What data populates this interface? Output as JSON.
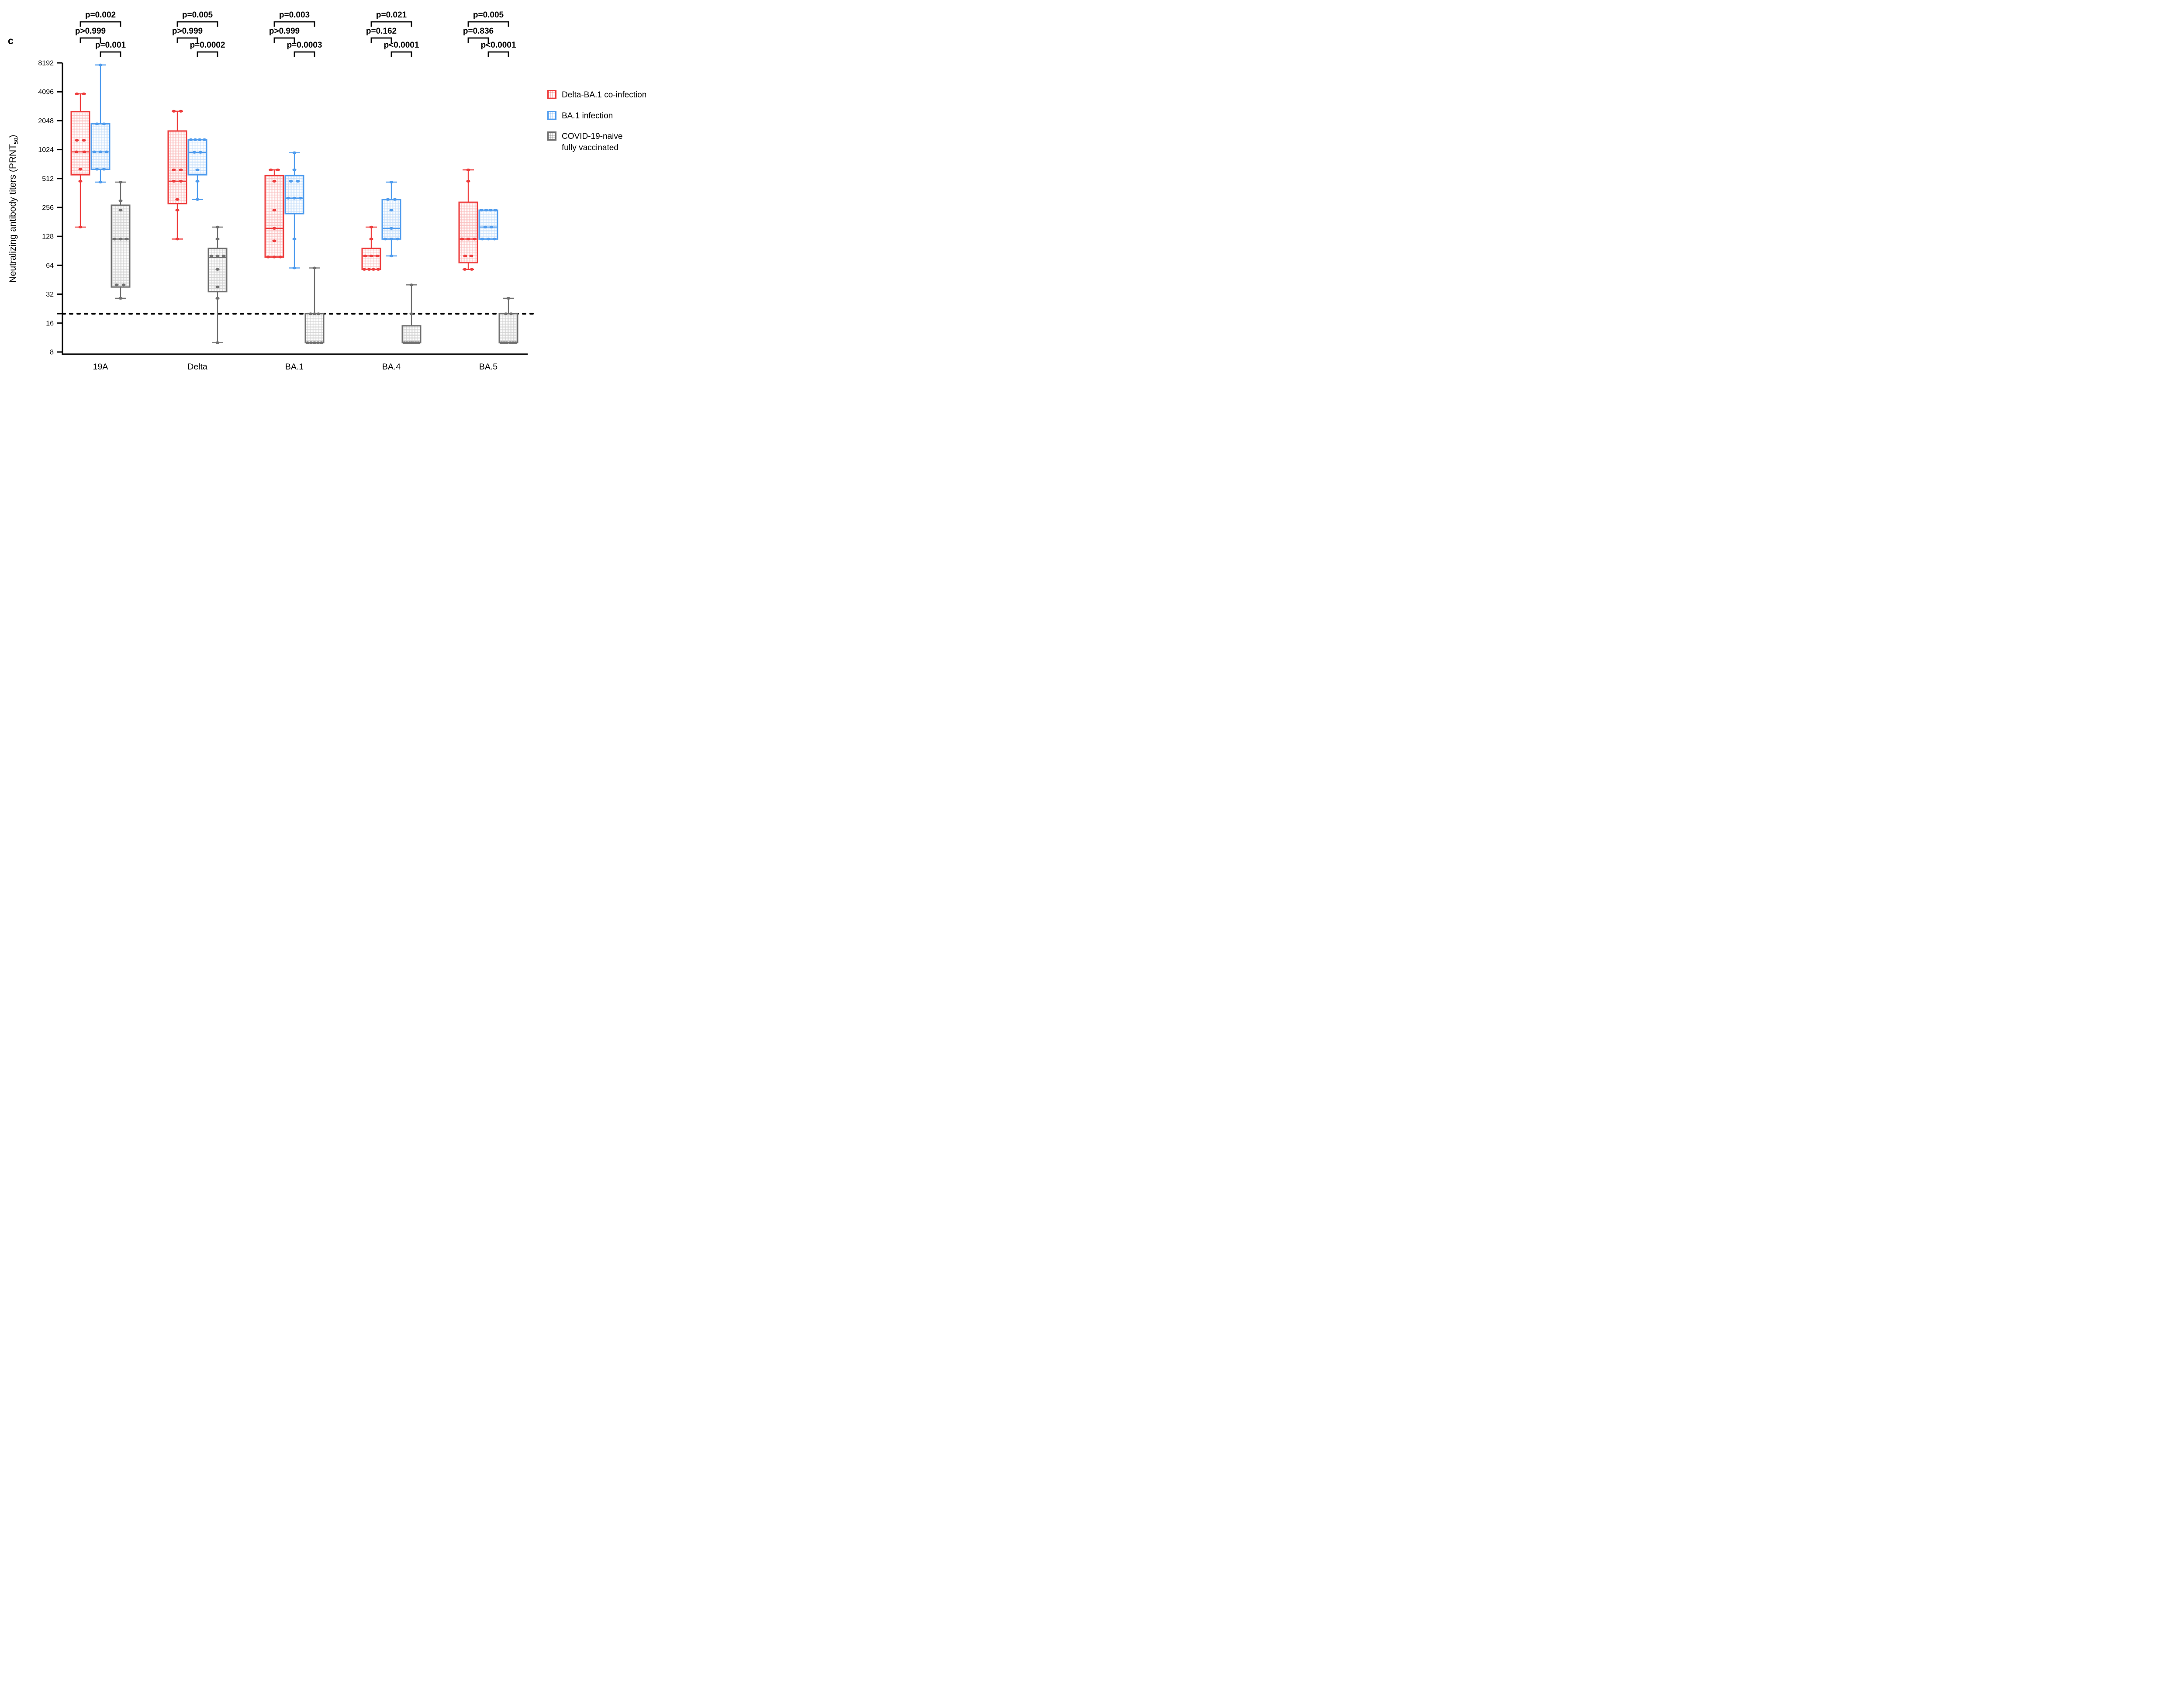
{
  "panel_label": "c",
  "chart_data": {
    "type": "box",
    "ylabel_main": "Neutralizing antibody titers (PRNT",
    "ylabel_sub": "50",
    "ylabel_close": ")",
    "y_scale": "log2",
    "ylim": [
      8,
      8192
    ],
    "y_ticks": [
      8192,
      4096,
      2048,
      1024,
      512,
      256,
      128,
      64,
      32,
      16,
      8
    ],
    "threshold_line": 20,
    "threshold_tick": true,
    "grid": "off",
    "legend_position": "right",
    "categories": [
      "19A",
      "Delta",
      "BA.1",
      "BA.4",
      "BA.5"
    ],
    "series": [
      {
        "id": "red",
        "color": "#ee3b3b",
        "lines": [
          "Delta-BA.1 co-infection"
        ]
      },
      {
        "id": "blue",
        "color": "#4f9cee",
        "lines": [
          "BA.1 infection"
        ]
      },
      {
        "id": "gray",
        "color": "#6f6f6f",
        "lines": [
          "COVID-19-naive",
          "fully vaccinated"
        ]
      }
    ],
    "boxes": [
      {
        "cat": "19A",
        "series": "red",
        "stats": {
          "lo": 160,
          "q1": 560,
          "med": 970,
          "q3": 2550,
          "hi": 3900
        },
        "pts": [
          [
            3900,
            -8
          ],
          [
            3900,
            8
          ],
          [
            1280,
            -8
          ],
          [
            1280,
            8
          ],
          [
            970,
            -9
          ],
          [
            970,
            9
          ],
          [
            640,
            0
          ],
          [
            480,
            0
          ],
          [
            160,
            0
          ]
        ]
      },
      {
        "cat": "19A",
        "series": "blue",
        "stats": {
          "lo": 470,
          "q1": 640,
          "med": 970,
          "q3": 1900,
          "hi": 7800
        },
        "pts": [
          [
            7800,
            0
          ],
          [
            1900,
            -8
          ],
          [
            1900,
            8
          ],
          [
            970,
            -14
          ],
          [
            970,
            0
          ],
          [
            970,
            14
          ],
          [
            640,
            -8
          ],
          [
            640,
            8
          ],
          [
            470,
            0
          ]
        ]
      },
      {
        "cat": "19A",
        "series": "gray",
        "stats": {
          "lo": 29,
          "q1": 38,
          "med": 120,
          "q3": 270,
          "hi": 470
        },
        "pts": [
          [
            470,
            0
          ],
          [
            300,
            0
          ],
          [
            240,
            0
          ],
          [
            120,
            -14
          ],
          [
            120,
            0
          ],
          [
            120,
            14
          ],
          [
            40,
            -9
          ],
          [
            40,
            7
          ],
          [
            29,
            0
          ]
        ]
      },
      {
        "cat": "Delta",
        "series": "red",
        "stats": {
          "lo": 120,
          "q1": 280,
          "med": 480,
          "q3": 1600,
          "hi": 2570
        },
        "pts": [
          [
            2570,
            -8
          ],
          [
            2570,
            8
          ],
          [
            630,
            -8
          ],
          [
            630,
            8
          ],
          [
            480,
            -8
          ],
          [
            480,
            8
          ],
          [
            310,
            0
          ],
          [
            240,
            0
          ],
          [
            120,
            0
          ]
        ]
      },
      {
        "cat": "Delta",
        "series": "blue",
        "stats": {
          "lo": 310,
          "q1": 560,
          "med": 960,
          "q3": 1300,
          "hi": 1300
        },
        "pts": [
          [
            1300,
            -15
          ],
          [
            1300,
            -5
          ],
          [
            1300,
            5
          ],
          [
            1300,
            16
          ],
          [
            960,
            -7
          ],
          [
            960,
            7
          ],
          [
            630,
            0
          ],
          [
            480,
            0
          ],
          [
            310,
            0
          ]
        ]
      },
      {
        "cat": "Delta",
        "series": "gray",
        "stats": {
          "lo": 10,
          "q1": 34,
          "med": 77,
          "q3": 96,
          "hi": 160
        },
        "pts": [
          [
            160,
            0
          ],
          [
            120,
            0
          ],
          [
            80,
            -14
          ],
          [
            80,
            0
          ],
          [
            80,
            14
          ],
          [
            58,
            0
          ],
          [
            38,
            0
          ],
          [
            29,
            0
          ],
          [
            10,
            0
          ]
        ]
      },
      {
        "cat": "BA.1",
        "series": "red",
        "stats": {
          "lo": 78,
          "q1": 78,
          "med": 155,
          "q3": 550,
          "hi": 630
        },
        "pts": [
          [
            630,
            -8
          ],
          [
            630,
            8
          ],
          [
            480,
            0
          ],
          [
            240,
            0
          ],
          [
            155,
            0
          ],
          [
            115,
            0
          ],
          [
            78,
            -14
          ],
          [
            78,
            0
          ],
          [
            78,
            14
          ]
        ]
      },
      {
        "cat": "BA.1",
        "series": "blue",
        "stats": {
          "lo": 60,
          "q1": 220,
          "med": 320,
          "q3": 550,
          "hi": 950
        },
        "pts": [
          [
            950,
            0
          ],
          [
            630,
            0
          ],
          [
            480,
            -8
          ],
          [
            480,
            8
          ],
          [
            320,
            -14
          ],
          [
            320,
            0
          ],
          [
            320,
            14
          ],
          [
            120,
            0
          ],
          [
            60,
            0
          ]
        ]
      },
      {
        "cat": "BA.1",
        "series": "gray",
        "stats": {
          "lo": 10,
          "q1": 10,
          "med": 10,
          "q3": 20,
          "hi": 60
        },
        "pts": [
          [
            60,
            0
          ],
          [
            20,
            -9
          ],
          [
            20,
            0
          ],
          [
            20,
            9
          ],
          [
            10,
            -16
          ],
          [
            10,
            -8
          ],
          [
            10,
            0
          ],
          [
            10,
            8
          ],
          [
            10,
            16
          ]
        ]
      },
      {
        "cat": "BA.4",
        "series": "red",
        "stats": {
          "lo": 58,
          "q1": 58,
          "med": 80,
          "q3": 96,
          "hi": 160
        },
        "pts": [
          [
            160,
            0
          ],
          [
            120,
            0
          ],
          [
            80,
            -14
          ],
          [
            80,
            0
          ],
          [
            80,
            14
          ],
          [
            58,
            -16
          ],
          [
            58,
            -5
          ],
          [
            58,
            5
          ],
          [
            58,
            16
          ]
        ]
      },
      {
        "cat": "BA.4",
        "series": "blue",
        "stats": {
          "lo": 80,
          "q1": 120,
          "med": 155,
          "q3": 310,
          "hi": 470
        },
        "pts": [
          [
            470,
            0
          ],
          [
            310,
            -8
          ],
          [
            310,
            8
          ],
          [
            240,
            0
          ],
          [
            155,
            0
          ],
          [
            120,
            -14
          ],
          [
            120,
            0
          ],
          [
            120,
            14
          ],
          [
            80,
            0
          ]
        ]
      },
      {
        "cat": "BA.4",
        "series": "gray",
        "stats": {
          "lo": 10,
          "q1": 10,
          "med": 10,
          "q3": 15,
          "hi": 40
        },
        "pts": [
          [
            40,
            0
          ],
          [
            20,
            0
          ],
          [
            10,
            -16
          ],
          [
            10,
            -10
          ],
          [
            10,
            -4
          ],
          [
            10,
            0
          ],
          [
            10,
            4
          ],
          [
            10,
            10
          ],
          [
            10,
            16
          ]
        ]
      },
      {
        "cat": "BA.5",
        "series": "red",
        "stats": {
          "lo": 58,
          "q1": 68,
          "med": 120,
          "q3": 290,
          "hi": 630
        },
        "pts": [
          [
            630,
            0
          ],
          [
            480,
            0
          ],
          [
            120,
            -14
          ],
          [
            120,
            0
          ],
          [
            120,
            14
          ],
          [
            80,
            -7
          ],
          [
            80,
            7
          ],
          [
            58,
            -8
          ],
          [
            58,
            8
          ]
        ]
      },
      {
        "cat": "BA.5",
        "series": "blue",
        "stats": {
          "lo": 120,
          "q1": 120,
          "med": 160,
          "q3": 240,
          "hi": 240
        },
        "pts": [
          [
            240,
            -16
          ],
          [
            240,
            -5
          ],
          [
            240,
            5
          ],
          [
            240,
            16
          ],
          [
            160,
            -7
          ],
          [
            160,
            7
          ],
          [
            120,
            -14
          ],
          [
            120,
            0
          ],
          [
            120,
            14
          ]
        ]
      },
      {
        "cat": "BA.5",
        "series": "gray",
        "stats": {
          "lo": 10,
          "q1": 10,
          "med": 10,
          "q3": 20,
          "hi": 29
        },
        "pts": [
          [
            29,
            0
          ],
          [
            20,
            -6
          ],
          [
            20,
            6
          ],
          [
            10,
            -16
          ],
          [
            10,
            -10
          ],
          [
            10,
            -4
          ],
          [
            10,
            4
          ],
          [
            10,
            10
          ],
          [
            10,
            16
          ]
        ]
      }
    ],
    "p_values": [
      {
        "category": "19A",
        "rows": [
          {
            "pair": [
              "red",
              "gray"
            ],
            "label": "p=0.002"
          },
          {
            "pair": [
              "red",
              "blue"
            ],
            "label": "p>0.999"
          },
          {
            "pair": [
              "blue",
              "gray"
            ],
            "label": "p=0.001"
          }
        ]
      },
      {
        "category": "Delta",
        "rows": [
          {
            "pair": [
              "red",
              "gray"
            ],
            "label": "p=0.005"
          },
          {
            "pair": [
              "red",
              "blue"
            ],
            "label": "p>0.999"
          },
          {
            "pair": [
              "blue",
              "gray"
            ],
            "label": "p=0.0002"
          }
        ]
      },
      {
        "category": "BA.1",
        "rows": [
          {
            "pair": [
              "red",
              "gray"
            ],
            "label": "p=0.003"
          },
          {
            "pair": [
              "red",
              "blue"
            ],
            "label": "p>0.999"
          },
          {
            "pair": [
              "blue",
              "gray"
            ],
            "label": "p=0.0003"
          }
        ]
      },
      {
        "category": "BA.4",
        "rows": [
          {
            "pair": [
              "red",
              "gray"
            ],
            "label": "p=0.021"
          },
          {
            "pair": [
              "red",
              "blue"
            ],
            "label": "p=0.162"
          },
          {
            "pair": [
              "blue",
              "gray"
            ],
            "label": "p<0.0001"
          }
        ]
      },
      {
        "category": "BA.5",
        "rows": [
          {
            "pair": [
              "red",
              "gray"
            ],
            "label": "p=0.005"
          },
          {
            "pair": [
              "red",
              "blue"
            ],
            "label": "p=0.836"
          },
          {
            "pair": [
              "blue",
              "gray"
            ],
            "label": "p<0.0001"
          }
        ]
      }
    ]
  }
}
